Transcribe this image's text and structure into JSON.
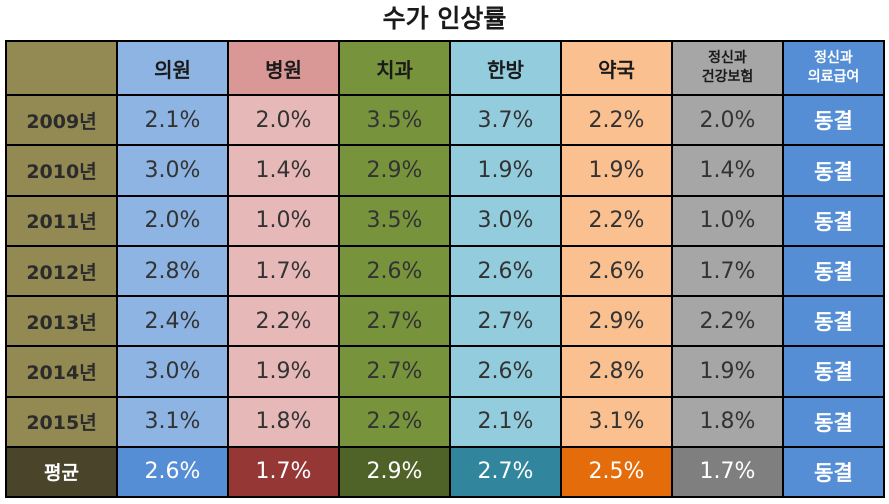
{
  "title": "수가 인상률",
  "chart_data": {
    "type": "table",
    "columns": [
      {
        "key": "clinic",
        "label": "의원",
        "color": "#8db4e2",
        "header_color": "#8db4e2",
        "avg_color": "#558ed5"
      },
      {
        "key": "hospital",
        "label": "병원",
        "color": "#e6b9b8",
        "header_color": "#d99795",
        "avg_color": "#953735"
      },
      {
        "key": "dental",
        "label": "치과",
        "color": "#77933c",
        "header_color": "#77933c",
        "avg_color": "#4f6228"
      },
      {
        "key": "oriental",
        "label": "한방",
        "color": "#93cddd",
        "header_color": "#93cddd",
        "avg_color": "#31859c"
      },
      {
        "key": "pharmacy",
        "label": "약국",
        "color": "#fac090",
        "header_color": "#fac090",
        "avg_color": "#e46c0a"
      },
      {
        "key": "mental_health_insurance",
        "label_line1": "정신과",
        "label_line2": "건강보험",
        "color": "#a6a6a6",
        "header_color": "#a6a6a6",
        "avg_color": "#7f7f7f"
      },
      {
        "key": "mental_medical_aid",
        "label_line1": "정신과",
        "label_line2": "의료급여",
        "color": "#558ed5",
        "header_color": "#558ed5",
        "avg_color": "#558ed5"
      }
    ],
    "row_label_color": "#938953",
    "avg_row_color": "#4a452a",
    "rows": [
      {
        "year": "2009년",
        "values": [
          "2.1%",
          "2.0%",
          "3.5%",
          "3.7%",
          "2.2%",
          "2.0%",
          "동결"
        ]
      },
      {
        "year": "2010년",
        "values": [
          "3.0%",
          "1.4%",
          "2.9%",
          "1.9%",
          "1.9%",
          "1.4%",
          "동결"
        ]
      },
      {
        "year": "2011년",
        "values": [
          "2.0%",
          "1.0%",
          "3.5%",
          "3.0%",
          "2.2%",
          "1.0%",
          "동결"
        ]
      },
      {
        "year": "2012년",
        "values": [
          "2.8%",
          "1.7%",
          "2.6%",
          "2.6%",
          "2.6%",
          "1.7%",
          "동결"
        ]
      },
      {
        "year": "2013년",
        "values": [
          "2.4%",
          "2.2%",
          "2.7%",
          "2.7%",
          "2.9%",
          "2.2%",
          "동결"
        ]
      },
      {
        "year": "2014년",
        "values": [
          "3.0%",
          "1.9%",
          "2.7%",
          "2.6%",
          "2.8%",
          "1.9%",
          "동결"
        ]
      },
      {
        "year": "2015년",
        "values": [
          "3.1%",
          "1.8%",
          "2.2%",
          "2.1%",
          "3.1%",
          "1.8%",
          "동결"
        ]
      }
    ],
    "average": {
      "label": "평균",
      "values": [
        "2.6%",
        "1.7%",
        "2.9%",
        "2.7%",
        "2.5%",
        "1.7%",
        "동결"
      ]
    }
  }
}
